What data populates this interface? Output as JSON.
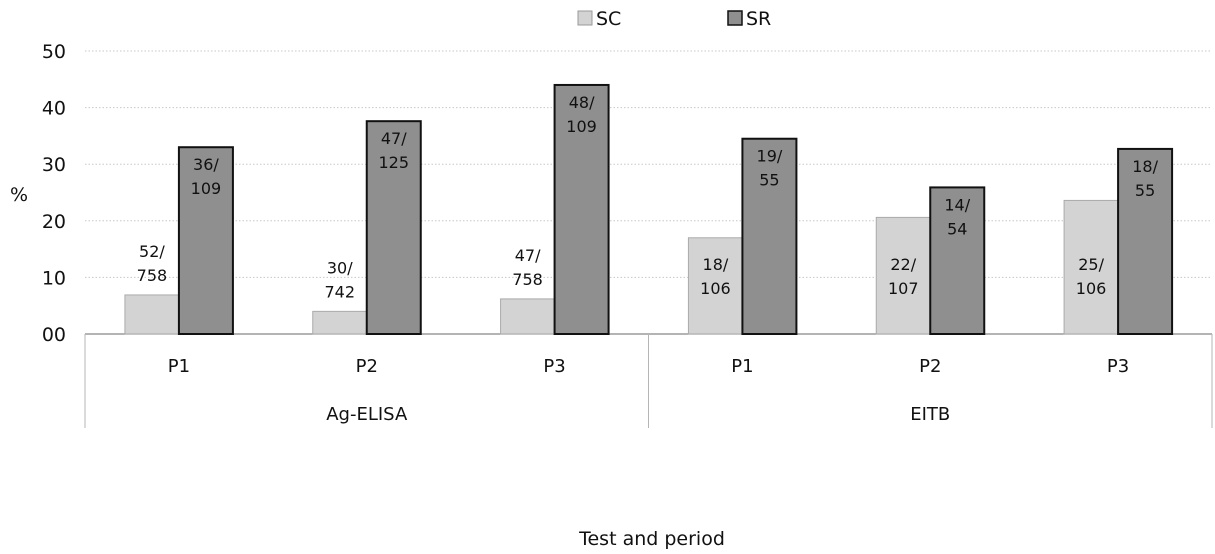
{
  "chart_data": {
    "type": "bar",
    "groups": [
      {
        "label": "Ag-ELISA",
        "categories": [
          "P1",
          "P2",
          "P3"
        ]
      },
      {
        "label": "EITB",
        "categories": [
          "P1",
          "P2",
          "P3"
        ]
      }
    ],
    "series": [
      {
        "name": "SC",
        "color": "#d3d3d3",
        "values": [
          6.9,
          4.0,
          6.2,
          17.0,
          20.6,
          23.6
        ],
        "labels": [
          [
            "52/",
            "758"
          ],
          [
            "30/",
            "742"
          ],
          [
            "47/",
            "758"
          ],
          [
            "18/",
            "106"
          ],
          [
            "22/",
            "107"
          ],
          [
            "25/",
            "106"
          ]
        ]
      },
      {
        "name": "SR",
        "color": "#8f8f8f",
        "values": [
          33.0,
          37.6,
          44.0,
          34.5,
          25.9,
          32.7
        ],
        "labels": [
          [
            "36/",
            "109"
          ],
          [
            "47/",
            "125"
          ],
          [
            "48/",
            "109"
          ],
          [
            "19/",
            "55"
          ],
          [
            "14/",
            "54"
          ],
          [
            "18/",
            "55"
          ]
        ]
      }
    ],
    "yticks": [
      "00",
      "10",
      "20",
      "30",
      "40",
      "50"
    ],
    "ylim": [
      0,
      50
    ],
    "ylabel": "%",
    "xlabel": "Test and period",
    "legend_position": "top-center",
    "grid": true
  }
}
